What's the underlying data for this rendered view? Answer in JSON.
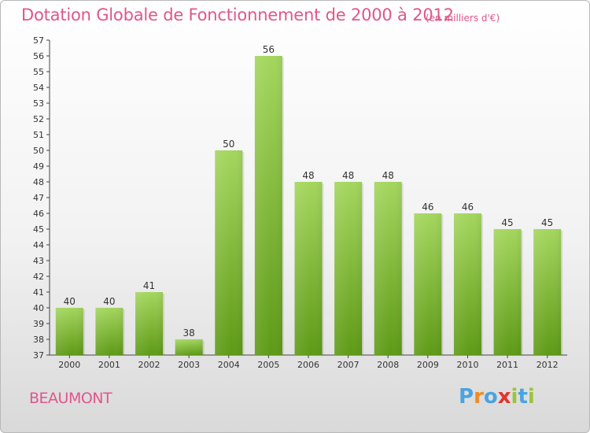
{
  "header": {
    "title": "Dotation Globale de Fonctionnement de 2000 à 2012",
    "unit": "(en milliers d'€)"
  },
  "footer": {
    "commune": "BEAUMONT",
    "logo_text": "Proxiti"
  },
  "colors": {
    "title": "#e0568a",
    "bar_light": "#a4d65e",
    "bar_dark": "#5e9a16",
    "logo": [
      "#4aa3df",
      "#f08a24",
      "#4aa3df",
      "#e6332a",
      "#9ac43c",
      "#4aa3df",
      "#9ac43c"
    ]
  },
  "chart_data": {
    "type": "bar",
    "categories": [
      "2000",
      "2001",
      "2002",
      "2003",
      "2004",
      "2005",
      "2006",
      "2007",
      "2008",
      "2009",
      "2010",
      "2011",
      "2012"
    ],
    "values": [
      40,
      40,
      41,
      38,
      50,
      56,
      48,
      48,
      48,
      46,
      46,
      45,
      45
    ],
    "ylim": [
      37,
      57
    ],
    "ytick_step": 1,
    "grid": false,
    "data_labels": true
  }
}
